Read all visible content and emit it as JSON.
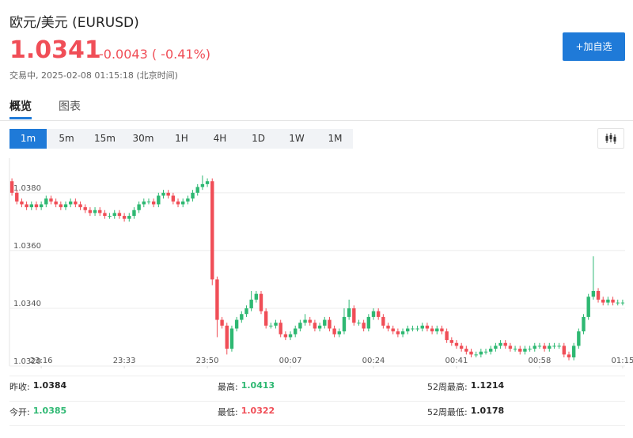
{
  "header": {
    "title": "欧元/美元 (EURUSD)",
    "price": 1.0341,
    "change": "-0.0043 ( -0.41%)",
    "status": "交易中, 2025-02-08 01:15:18 (北京时间)",
    "button": "+加自选"
  },
  "tabs": [
    "概览",
    "图表"
  ],
  "timeframes": [
    "1m",
    "5m",
    "15m",
    "30m",
    "1H",
    "4H",
    "1D",
    "1W",
    "1M"
  ],
  "chart_data": {
    "type": "candlestick",
    "open": [
      1.0384,
      1.038,
      1.0377,
      1.0376,
      1.0375,
      1.0376,
      1.0375,
      1.0376,
      1.0378,
      1.0377,
      1.0376,
      1.0375,
      1.0376,
      1.0377,
      1.0376,
      1.0375,
      1.0374,
      1.0373,
      1.0374,
      1.0373,
      1.0372,
      1.0372,
      1.0373,
      1.0372,
      1.0371,
      1.0372,
      1.0374,
      1.0376,
      1.0377,
      1.0377,
      1.0376,
      1.0379,
      1.038,
      1.0379,
      1.0377,
      1.0376,
      1.0377,
      1.0378,
      1.038,
      1.0382,
      1.0383,
      1.0384,
      1.035,
      1.0336,
      1.0334,
      1.0326,
      1.0333,
      1.0336,
      1.0338,
      1.034,
      1.0343,
      1.0345,
      1.0339,
      1.0334,
      1.0334,
      1.0335,
      1.0331,
      1.033,
      1.0331,
      1.0333,
      1.0335,
      1.0336,
      1.0335,
      1.0333,
      1.0334,
      1.0336,
      1.0333,
      1.0331,
      1.0332,
      1.0337,
      1.034,
      1.0335,
      1.0335,
      1.0333,
      1.0337,
      1.0339,
      1.0337,
      1.0334,
      1.0333,
      1.0332,
      1.0331,
      1.0332,
      1.0333,
      1.0333,
      1.0333,
      1.0334,
      1.0333,
      1.0332,
      1.0333,
      1.0332,
      1.0329,
      1.0328,
      1.0327,
      1.0326,
      1.0325,
      1.0324,
      1.0324,
      1.0325,
      1.0325,
      1.0326,
      1.0327,
      1.0328,
      1.0327,
      1.0326,
      1.0326,
      1.0325,
      1.0326,
      1.0326,
      1.0327,
      1.0327,
      1.0326,
      1.0327,
      1.0327,
      1.0327,
      1.0324,
      1.0323,
      1.0327,
      1.0332,
      1.0337,
      1.0344,
      1.0346,
      1.0343,
      1.0342,
      1.0343,
      1.0342,
      1.0342
    ],
    "high": [
      1.0385,
      1.0381,
      1.0378,
      1.0377,
      1.0377,
      1.0377,
      1.0377,
      1.0379,
      1.0379,
      1.0378,
      1.0377,
      1.0377,
      1.0378,
      1.0378,
      1.0377,
      1.0376,
      1.0375,
      1.0375,
      1.0375,
      1.0374,
      1.0373,
      1.0374,
      1.0374,
      1.0373,
      1.0373,
      1.0375,
      1.0377,
      1.0378,
      1.0378,
      1.0378,
      1.038,
      1.0381,
      1.0381,
      1.038,
      1.0378,
      1.0378,
      1.0379,
      1.0381,
      1.0383,
      1.0386,
      1.0385,
      1.0385,
      1.0351,
      1.0337,
      1.0335,
      1.0334,
      1.0337,
      1.0339,
      1.0341,
      1.0346,
      1.0346,
      1.0346,
      1.034,
      1.0335,
      1.0336,
      1.0336,
      1.0332,
      1.0332,
      1.0334,
      1.0336,
      1.0338,
      1.0337,
      1.0336,
      1.0335,
      1.0337,
      1.0337,
      1.0334,
      1.0333,
      1.034,
      1.0343,
      1.0341,
      1.0336,
      1.0336,
      1.0338,
      1.034,
      1.034,
      1.0338,
      1.0335,
      1.0334,
      1.0333,
      1.0333,
      1.0334,
      1.0334,
      1.0334,
      1.0335,
      1.0335,
      1.0334,
      1.0334,
      1.0334,
      1.0333,
      1.033,
      1.0329,
      1.0328,
      1.0327,
      1.0326,
      1.0325,
      1.0326,
      1.0326,
      1.0327,
      1.0328,
      1.0329,
      1.0329,
      1.0328,
      1.0327,
      1.0327,
      1.0327,
      1.0327,
      1.0328,
      1.0328,
      1.0328,
      1.0328,
      1.0328,
      1.0328,
      1.0328,
      1.0325,
      1.0328,
      1.0333,
      1.0338,
      1.0345,
      1.0358,
      1.0347,
      1.0344,
      1.0344,
      1.0344,
      1.0343,
      1.0343
    ],
    "low": [
      1.0379,
      1.0376,
      1.0375,
      1.0374,
      1.0374,
      1.0374,
      1.0374,
      1.0375,
      1.0376,
      1.0375,
      1.0374,
      1.0374,
      1.0375,
      1.0375,
      1.0374,
      1.0373,
      1.0372,
      1.0372,
      1.0372,
      1.0371,
      1.0371,
      1.0371,
      1.0371,
      1.037,
      1.037,
      1.0371,
      1.0373,
      1.0375,
      1.0376,
      1.0375,
      1.0375,
      1.0378,
      1.0378,
      1.0376,
      1.0375,
      1.0375,
      1.0376,
      1.0377,
      1.0379,
      1.0381,
      1.0382,
      1.0348,
      1.033,
      1.0333,
      1.0324,
      1.0325,
      1.0332,
      1.0335,
      1.0337,
      1.0339,
      1.0342,
      1.0338,
      1.0333,
      1.0333,
      1.0333,
      1.033,
      1.0329,
      1.0329,
      1.033,
      1.0332,
      1.0334,
      1.0334,
      1.0332,
      1.0332,
      1.0333,
      1.0332,
      1.033,
      1.033,
      1.0331,
      1.0336,
      1.0334,
      1.0334,
      1.0332,
      1.0332,
      1.0336,
      1.0336,
      1.0333,
      1.0332,
      1.0331,
      1.033,
      1.033,
      1.0331,
      1.0332,
      1.0332,
      1.0332,
      1.0332,
      1.0331,
      1.0331,
      1.0331,
      1.0328,
      1.0327,
      1.0326,
      1.0325,
      1.0324,
      1.0323,
      1.0323,
      1.0323,
      1.0324,
      1.0324,
      1.0325,
      1.0326,
      1.0326,
      1.0325,
      1.0325,
      1.0324,
      1.0324,
      1.0325,
      1.0325,
      1.0326,
      1.0325,
      1.0325,
      1.0326,
      1.0326,
      1.0323,
      1.0322,
      1.0322,
      1.0326,
      1.0331,
      1.0336,
      1.0343,
      1.0342,
      1.0341,
      1.0341,
      1.0341,
      1.0341,
      1.0341
    ],
    "close": [
      1.038,
      1.0377,
      1.0376,
      1.0375,
      1.0376,
      1.0375,
      1.0376,
      1.0378,
      1.0377,
      1.0376,
      1.0375,
      1.0376,
      1.0377,
      1.0376,
      1.0375,
      1.0374,
      1.0373,
      1.0374,
      1.0373,
      1.0372,
      1.0372,
      1.0373,
      1.0372,
      1.0371,
      1.0372,
      1.0374,
      1.0376,
      1.0377,
      1.0377,
      1.0376,
      1.0379,
      1.038,
      1.0379,
      1.0377,
      1.0376,
      1.0377,
      1.0378,
      1.038,
      1.0382,
      1.0383,
      1.0384,
      1.035,
      1.0336,
      1.0334,
      1.0326,
      1.0333,
      1.0336,
      1.0338,
      1.034,
      1.0343,
      1.0345,
      1.0339,
      1.0334,
      1.0334,
      1.0335,
      1.0331,
      1.033,
      1.0331,
      1.0333,
      1.0335,
      1.0336,
      1.0335,
      1.0333,
      1.0334,
      1.0336,
      1.0333,
      1.0331,
      1.0332,
      1.0337,
      1.034,
      1.0335,
      1.0335,
      1.0333,
      1.0337,
      1.0339,
      1.0337,
      1.0334,
      1.0333,
      1.0332,
      1.0331,
      1.0332,
      1.0333,
      1.0333,
      1.0333,
      1.0334,
      1.0333,
      1.0332,
      1.0333,
      1.0332,
      1.0329,
      1.0328,
      1.0327,
      1.0326,
      1.0325,
      1.0324,
      1.0324,
      1.0325,
      1.0325,
      1.0326,
      1.0327,
      1.0328,
      1.0327,
      1.0326,
      1.0326,
      1.0325,
      1.0326,
      1.0326,
      1.0327,
      1.0327,
      1.0326,
      1.0327,
      1.0327,
      1.0327,
      1.0324,
      1.0323,
      1.0327,
      1.0332,
      1.0337,
      1.0344,
      1.0346,
      1.0343,
      1.0342,
      1.0343,
      1.0342,
      1.0342,
      1.0342
    ],
    "xlim": [
      -0.5,
      125.5
    ],
    "xticks": [
      {
        "value": 6,
        "label": "23:16"
      },
      {
        "value": 23,
        "label": "23:33"
      },
      {
        "value": 40,
        "label": "23:50"
      },
      {
        "value": 57,
        "label": "00:07"
      },
      {
        "value": 74,
        "label": "00:24"
      },
      {
        "value": 91,
        "label": "00:41"
      },
      {
        "value": 108,
        "label": "00:58"
      },
      {
        "value": 125,
        "label": "01:15"
      }
    ],
    "ylim": [
      1.032,
      1.0392
    ],
    "yticks": [
      {
        "value": 1.032,
        "label": "1.0320"
      },
      {
        "value": 1.034,
        "label": "1.0340"
      },
      {
        "value": 1.036,
        "label": "1.0360"
      },
      {
        "value": 1.038,
        "label": "1.0380"
      }
    ],
    "grid": true,
    "up_color": "#2eb872",
    "down_color": "#f04e57"
  },
  "stats": [
    {
      "label": "昨收:",
      "value": 1.0384
    },
    {
      "label": "最高:",
      "value": 1.0413
    },
    {
      "label": "52周最高:",
      "value": 1.1214
    },
    {
      "label": "今开:",
      "value": 1.0385
    },
    {
      "label": "最低:",
      "value": 1.0322
    },
    {
      "label": "52周最低:",
      "value": 1.0178
    }
  ]
}
